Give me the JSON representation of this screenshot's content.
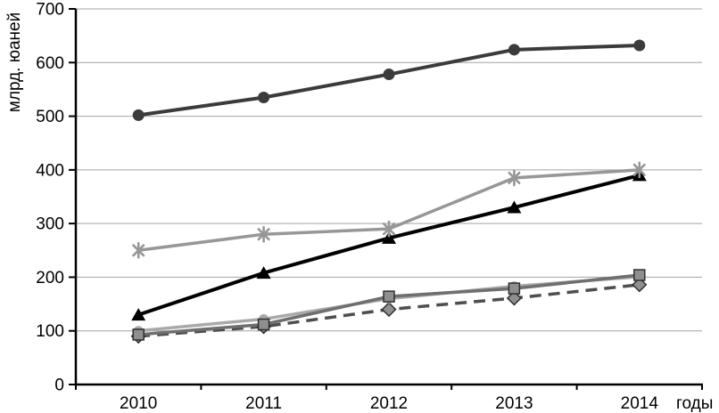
{
  "chart_data": {
    "type": "line",
    "title": "",
    "xlabel": "годы",
    "ylabel": "млрд. юаней",
    "categories": [
      "2010",
      "2011",
      "2012",
      "2013",
      "2014"
    ],
    "ylim": [
      0,
      700
    ],
    "y_ticks": [
      0,
      100,
      200,
      300,
      400,
      500,
      600,
      700
    ],
    "grid": true,
    "legend": "none",
    "grid_color": "#a3a3a3",
    "axis_color": "#000000",
    "text_color": "#000000",
    "series": [
      {
        "name": "series-dark-circle",
        "marker": "circle",
        "line": "solid",
        "color": "#3b3b3b",
        "marker_fill": "#3b3b3b",
        "line_width": 4,
        "marker_size": 13,
        "values": [
          502,
          535,
          578,
          624,
          632
        ]
      },
      {
        "name": "series-asterisk",
        "marker": "asterisk",
        "line": "solid",
        "color": "#979797",
        "marker_fill": "#979797",
        "line_width": 3.5,
        "marker_size": 16,
        "values": [
          250,
          280,
          290,
          385,
          400
        ]
      },
      {
        "name": "series-triangle",
        "marker": "triangle",
        "line": "solid",
        "color": "#000000",
        "marker_fill": "#000000",
        "line_width": 4,
        "marker_size": 15,
        "values": [
          130,
          208,
          273,
          330,
          390
        ]
      },
      {
        "name": "series-square",
        "marker": "square",
        "line": "solid",
        "color": "#6f6f6f",
        "marker_fill": "#8f8f8f",
        "marker_stroke": "#2f2f2f",
        "line_width": 3.5,
        "marker_size": 12,
        "values": [
          93,
          112,
          164,
          179,
          204
        ]
      },
      {
        "name": "series-light-circle",
        "marker": "circle",
        "line": "solid",
        "color": "#a9a9a9",
        "marker_fill": "#a9a9a9",
        "line_width": 3.5,
        "marker_size": 11,
        "values": [
          100,
          122,
          160,
          183,
          201
        ]
      },
      {
        "name": "series-diamond",
        "marker": "diamond",
        "line": "dashed",
        "color": "#4e4e4e",
        "marker_fill": "#8f8f8f",
        "marker_stroke": "#2f2f2f",
        "line_width": 3.5,
        "marker_size": 13,
        "values": [
          90,
          108,
          140,
          161,
          186
        ]
      }
    ]
  }
}
